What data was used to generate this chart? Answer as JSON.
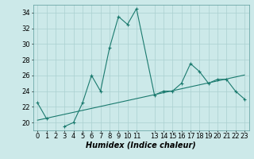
{
  "xlabel": "Humidex (Indice chaleur)",
  "x": [
    0,
    1,
    2,
    3,
    4,
    5,
    6,
    7,
    8,
    9,
    10,
    11,
    13,
    14,
    15,
    16,
    17,
    18,
    19,
    20,
    21,
    22,
    23
  ],
  "y_main": [
    22.5,
    20.5,
    null,
    19.5,
    20.0,
    22.5,
    26.0,
    24.0,
    29.5,
    33.5,
    32.5,
    34.5,
    23.5,
    24.0,
    24.0,
    25.0,
    27.5,
    26.5,
    25.0,
    25.5,
    25.5,
    24.0,
    23.0
  ],
  "y_trend": [
    20.3,
    20.55,
    20.8,
    21.05,
    21.3,
    21.55,
    21.8,
    22.05,
    22.3,
    22.55,
    22.8,
    23.05,
    23.55,
    23.8,
    24.05,
    24.3,
    24.55,
    24.8,
    25.05,
    25.3,
    25.55,
    25.8,
    26.05
  ],
  "ylim": [
    19.0,
    35.0
  ],
  "xlim": [
    -0.5,
    23.5
  ],
  "yticks": [
    20,
    22,
    24,
    26,
    28,
    30,
    32,
    34
  ],
  "xtick_positions": [
    0,
    1,
    2,
    3,
    4,
    5,
    6,
    7,
    8,
    9,
    10,
    11,
    13,
    14,
    15,
    16,
    17,
    18,
    19,
    20,
    21,
    22,
    23
  ],
  "xtick_labels": [
    "0",
    "1",
    "2",
    "3",
    "4",
    "5",
    "6",
    "7",
    "8",
    "9",
    "10",
    "11",
    "13",
    "14",
    "15",
    "16",
    "17",
    "18",
    "19",
    "20",
    "21",
    "22",
    "23"
  ],
  "line_color": "#1a7a6e",
  "bg_color": "#cce9e9",
  "grid_color": "#aad0d0",
  "label_fontsize": 7,
  "tick_fontsize": 6
}
